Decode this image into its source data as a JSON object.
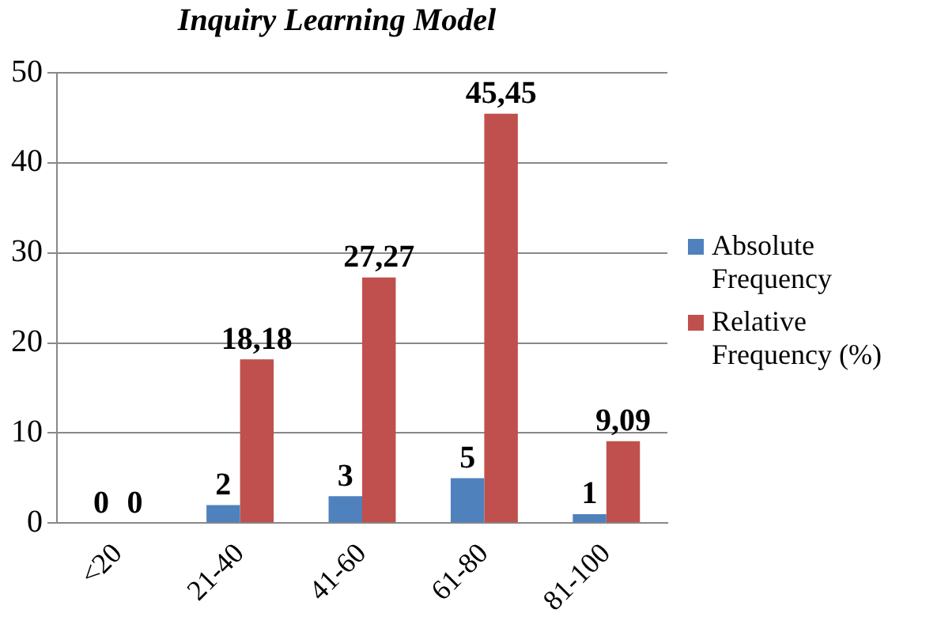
{
  "chart_data": {
    "type": "bar",
    "title": "Inquiry Learning Model",
    "categories": [
      "<20",
      "21-40",
      "41-60",
      "61-80",
      "81-100"
    ],
    "series": [
      {
        "name": "Absolute Frequency",
        "color": "#4f81bd",
        "values": [
          0,
          2,
          3,
          5,
          1
        ],
        "value_labels": [
          "0",
          "2",
          "3",
          "5",
          "1"
        ]
      },
      {
        "name": "Relative Frequency (%)",
        "color": "#c0504d",
        "values": [
          0,
          18.18,
          27.27,
          45.45,
          9.09
        ],
        "value_labels": [
          "0",
          "18,18",
          "27,27",
          "45,45",
          "9,09"
        ]
      }
    ],
    "ylim": [
      0,
      50
    ],
    "yticks": [
      0,
      10,
      20,
      30,
      40,
      50
    ],
    "grid": "y",
    "legend": "right"
  }
}
